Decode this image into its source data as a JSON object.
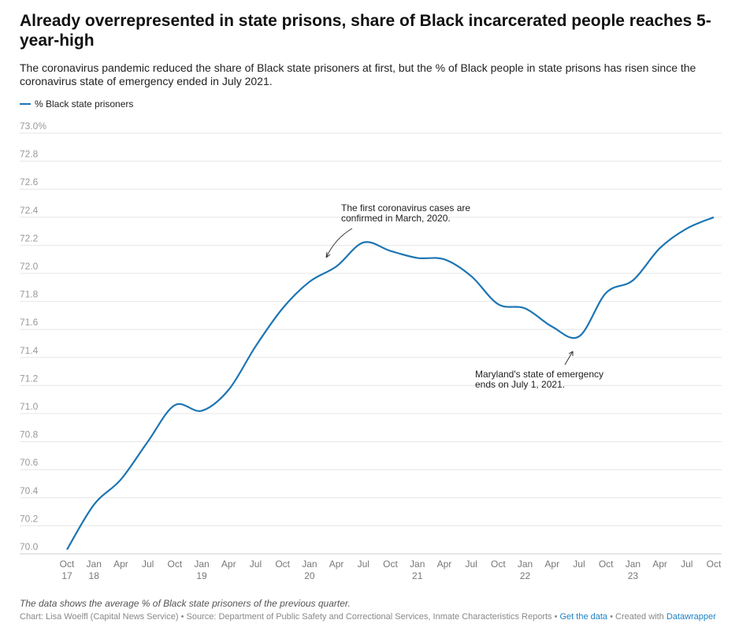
{
  "chart_data": {
    "type": "line",
    "title": "Already overrepresented in state prisons, share of Black incarcerated people reaches 5-year-high",
    "subtitle": "The coronavirus pandemic reduced the share of Black state prisoners at first, but the % of Black people in state prisons has risen since the coronavirus state of emergency ended in July 2021.",
    "legend": "% Black state prisoners",
    "color": "#1d75b3",
    "ylim": [
      70.0,
      73.0
    ],
    "yticks": [
      "70.0",
      "70.2",
      "70.4",
      "70.6",
      "70.8",
      "71.0",
      "71.2",
      "71.4",
      "71.6",
      "71.8",
      "72.0",
      "72.2",
      "72.4",
      "72.6",
      "72.8",
      "73.0%"
    ],
    "xticks": [
      [
        "Oct",
        "17"
      ],
      [
        "Jan",
        "18"
      ],
      [
        "Apr",
        ""
      ],
      [
        "Jul",
        ""
      ],
      [
        "Oct",
        ""
      ],
      [
        "Jan",
        "19"
      ],
      [
        "Apr",
        ""
      ],
      [
        "Jul",
        ""
      ],
      [
        "Oct",
        ""
      ],
      [
        "Jan",
        "20"
      ],
      [
        "Apr",
        ""
      ],
      [
        "Jul",
        ""
      ],
      [
        "Oct",
        ""
      ],
      [
        "Jan",
        "21"
      ],
      [
        "Apr",
        ""
      ],
      [
        "Jul",
        ""
      ],
      [
        "Oct",
        ""
      ],
      [
        "Jan",
        "22"
      ],
      [
        "Apr",
        ""
      ],
      [
        "Jul",
        ""
      ],
      [
        "Oct",
        ""
      ],
      [
        "Jan",
        "23"
      ],
      [
        "Apr",
        ""
      ],
      [
        "Jul",
        ""
      ],
      [
        "Oct",
        ""
      ]
    ],
    "series": [
      {
        "name": "% Black state prisoners",
        "values": [
          70.03,
          70.35,
          70.53,
          70.8,
          71.06,
          71.02,
          71.17,
          71.48,
          71.75,
          71.94,
          72.05,
          72.22,
          72.16,
          72.11,
          72.1,
          71.98,
          71.78,
          71.75,
          71.62,
          71.55,
          71.86,
          71.95,
          72.18,
          72.32,
          72.4
        ]
      }
    ],
    "annotations": [
      "The first coronavirus cases are confirmed in March, 2020.",
      "Maryland's state of emergency ends on July 1, 2021."
    ]
  },
  "footer": {
    "note": "The data shows the average % of Black state prisoners of the previous quarter.",
    "credit": "Chart: Lisa Woelfl (Capital News Service) • Source: Department of Public Safety and Correctional Services, Inmate Characteristics Reports • ",
    "get_data": "Get the data",
    "created": " • Created with ",
    "datawrapper": "Datawrapper"
  }
}
